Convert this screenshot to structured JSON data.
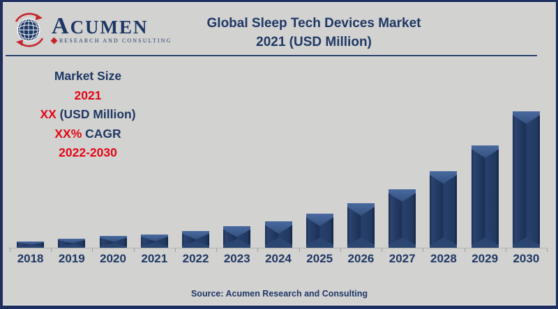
{
  "header": {
    "logo": {
      "name": "ACUMEN",
      "subtitle": "RESEARCH AND CONSULTING"
    },
    "title_line1": "Global Sleep Tech Devices Market",
    "title_line2": "2021 (USD Million)"
  },
  "annotation": {
    "line1": "Market Size",
    "line2": "2021",
    "line3_red": "XX",
    "line3_navy": " (USD Million)",
    "line4_red": "XX%",
    "line4_navy": " CAGR",
    "line5": "2022-2030"
  },
  "footer": {
    "source": "Source: Acumen Research and Consulting"
  },
  "icons": {
    "logo_globe": "globe-icon",
    "logo_diamond": "diamond-icon"
  },
  "colors": {
    "navy_text": "#1f3864",
    "red_text": "#e30613",
    "background": "#d2d2d1",
    "frame_border": "#1e2f5e",
    "bar_body": "#1d3156",
    "bar_bevel_top": "#3e5c90",
    "bar_bevel_bottom": "#2c4672",
    "axis_line": "#b3b3b1",
    "logo_red": "#c4242e",
    "logo_navy": "#1c3765"
  },
  "chart_data": {
    "type": "bar",
    "title": "Global Sleep Tech Devices Market 2021 (USD Million)",
    "categories": [
      "2018",
      "2019",
      "2020",
      "2021",
      "2022",
      "2023",
      "2024",
      "2025",
      "2026",
      "2027",
      "2028",
      "2029",
      "2030"
    ],
    "values": [
      9,
      13,
      17,
      19,
      24,
      31,
      38,
      49,
      64,
      84,
      110,
      147,
      196
    ],
    "value_note": "No numeric labels shown in image; values are relative bar heights in px estimated from pixels (baseline y=356).",
    "xlabel": "",
    "ylabel": "",
    "y_axis_shown": false,
    "gridlines": false,
    "legend": false,
    "bar_style": "3D beveled navy bars"
  }
}
